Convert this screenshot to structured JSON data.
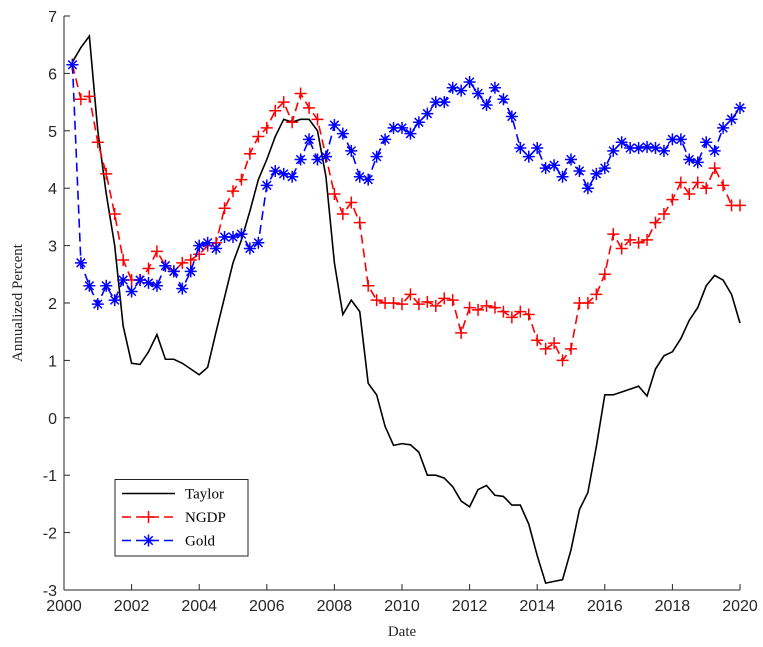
{
  "chart_data": {
    "type": "line",
    "xlabel": "Date",
    "ylabel": "Annualized Percent",
    "xlim": [
      2000,
      2020
    ],
    "xticks": [
      2000,
      2002,
      2004,
      2006,
      2008,
      2010,
      2012,
      2014,
      2016,
      2018,
      2020
    ],
    "ylim": [
      -3,
      7
    ],
    "yticks": [
      -3,
      -2,
      -1,
      0,
      1,
      2,
      3,
      4,
      5,
      6,
      7
    ],
    "legend_location": "lower left",
    "x": [
      2000.25,
      2000.5,
      2000.75,
      2001,
      2001.25,
      2001.5,
      2001.75,
      2002,
      2002.25,
      2002.5,
      2002.75,
      2003,
      2003.25,
      2003.5,
      2003.75,
      2004,
      2004.25,
      2004.5,
      2004.75,
      2005,
      2005.25,
      2005.5,
      2005.75,
      2006,
      2006.25,
      2006.5,
      2006.75,
      2007,
      2007.25,
      2007.5,
      2007.75,
      2008,
      2008.25,
      2008.5,
      2008.75,
      2009,
      2009.25,
      2009.5,
      2009.75,
      2010,
      2010.25,
      2010.5,
      2010.75,
      2011,
      2011.25,
      2011.5,
      2011.75,
      2012,
      2012.25,
      2012.5,
      2012.75,
      2013,
      2013.25,
      2013.5,
      2013.75,
      2014,
      2014.25,
      2014.5,
      2014.75,
      2015,
      2015.25,
      2015.5,
      2015.75,
      2016,
      2016.25,
      2016.5,
      2016.75,
      2017,
      2017.25,
      2017.5,
      2017.75,
      2018,
      2018.25,
      2018.5,
      2018.75,
      2019,
      2019.25,
      2019.5,
      2019.75,
      2020
    ],
    "series": [
      {
        "name": "Taylor",
        "color": "#000000",
        "linestyle": "solid",
        "marker": "none",
        "values": [
          6.2,
          6.45,
          6.65,
          5.0,
          3.9,
          3.0,
          1.6,
          0.95,
          0.93,
          1.15,
          1.45,
          1.02,
          1.02,
          0.95,
          0.85,
          0.75,
          0.88,
          1.5,
          2.1,
          2.7,
          3.1,
          3.6,
          4.15,
          4.5,
          4.9,
          5.2,
          5.15,
          5.2,
          5.2,
          5.0,
          4.2,
          2.7,
          1.8,
          2.05,
          1.85,
          0.6,
          0.4,
          -0.15,
          -0.48,
          -0.45,
          -0.47,
          -0.6,
          -1.0,
          -1.0,
          -1.05,
          -1.2,
          -1.45,
          -1.55,
          -1.25,
          -1.18,
          -1.35,
          -1.37,
          -1.52,
          -1.52,
          -1.85,
          -2.4,
          -2.88,
          -2.85,
          -2.82,
          -2.3,
          -1.6,
          -1.3,
          -0.5,
          0.4,
          0.4,
          0.45,
          0.5,
          0.55,
          0.38,
          0.85,
          1.08,
          1.15,
          1.38,
          1.7,
          1.92,
          2.3,
          2.48,
          2.4,
          2.15,
          1.65
        ]
      },
      {
        "name": "NGDP",
        "color": "#ff0000",
        "linestyle": "dashed",
        "marker": "plus",
        "values": [
          6.15,
          5.55,
          5.6,
          4.8,
          4.25,
          3.55,
          2.75,
          2.4,
          2.4,
          2.6,
          2.9,
          2.65,
          2.55,
          2.7,
          2.75,
          2.85,
          3.0,
          3.05,
          3.65,
          3.95,
          4.15,
          4.6,
          4.9,
          5.05,
          5.35,
          5.5,
          5.15,
          5.65,
          5.4,
          5.2,
          4.55,
          3.9,
          3.55,
          3.75,
          3.4,
          2.3,
          2.05,
          2.0,
          2.0,
          1.98,
          2.15,
          1.98,
          2.02,
          1.95,
          2.08,
          2.05,
          1.48,
          1.92,
          1.88,
          1.95,
          1.92,
          1.85,
          1.75,
          1.85,
          1.8,
          1.35,
          1.2,
          1.3,
          1.0,
          1.2,
          2.0,
          2.0,
          2.15,
          2.5,
          3.2,
          2.95,
          3.1,
          3.05,
          3.1,
          3.4,
          3.55,
          3.8,
          4.1,
          3.9,
          4.1,
          4.0,
          4.35,
          4.05,
          3.7,
          3.7
        ]
      },
      {
        "name": "Gold",
        "color": "#0000ff",
        "linestyle": "dashed",
        "marker": "asterisk",
        "values": [
          6.15,
          2.7,
          2.3,
          1.98,
          2.3,
          2.05,
          2.4,
          2.2,
          2.4,
          2.35,
          2.3,
          2.65,
          2.55,
          2.25,
          2.55,
          3.0,
          3.05,
          2.95,
          3.15,
          3.15,
          3.2,
          2.95,
          3.05,
          4.05,
          4.3,
          4.25,
          4.2,
          4.5,
          4.85,
          4.5,
          4.55,
          5.1,
          4.95,
          4.65,
          4.2,
          4.15,
          4.55,
          4.85,
          5.05,
          5.05,
          4.95,
          5.15,
          5.3,
          5.5,
          5.5,
          5.75,
          5.7,
          5.85,
          5.65,
          5.45,
          5.75,
          5.55,
          5.25,
          4.7,
          4.55,
          4.7,
          4.35,
          4.4,
          4.2,
          4.5,
          4.3,
          4.0,
          4.25,
          4.35,
          4.65,
          4.8,
          4.7,
          4.7,
          4.72,
          4.7,
          4.65,
          4.85,
          4.85,
          4.5,
          4.45,
          4.8,
          4.65,
          5.05,
          5.2,
          5.4
        ]
      }
    ]
  }
}
